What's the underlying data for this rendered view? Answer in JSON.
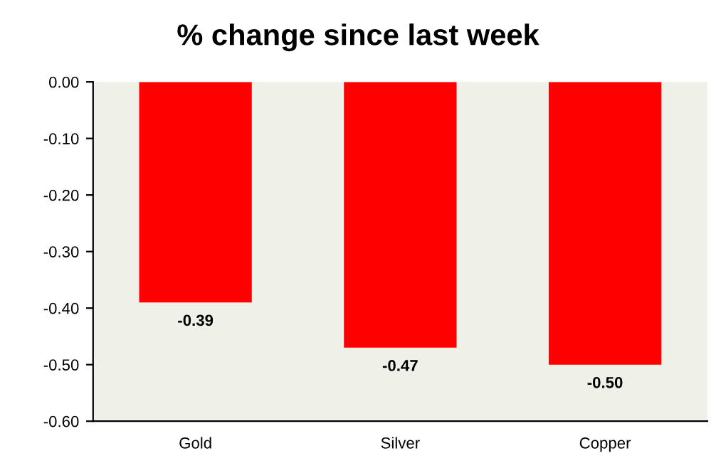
{
  "chart_data": {
    "type": "bar",
    "title": "% change since last week",
    "categories": [
      "Gold",
      "Silver",
      "Copper"
    ],
    "values": [
      -0.39,
      -0.47,
      -0.5
    ],
    "value_labels": [
      "-0.39",
      "-0.47",
      "-0.50"
    ],
    "color": "#ff0000",
    "ylim": [
      -0.6,
      0
    ],
    "yticks": [
      {
        "value": 0,
        "label": "0.00"
      },
      {
        "value": -0.1,
        "label": "-0.10"
      },
      {
        "value": -0.2,
        "label": "-0.20"
      },
      {
        "value": -0.3,
        "label": "-0.30"
      },
      {
        "value": -0.4,
        "label": "-0.40"
      },
      {
        "value": -0.5,
        "label": "-0.50"
      },
      {
        "value": -0.6,
        "label": "-0.60"
      }
    ],
    "grid": false,
    "legend": false
  }
}
